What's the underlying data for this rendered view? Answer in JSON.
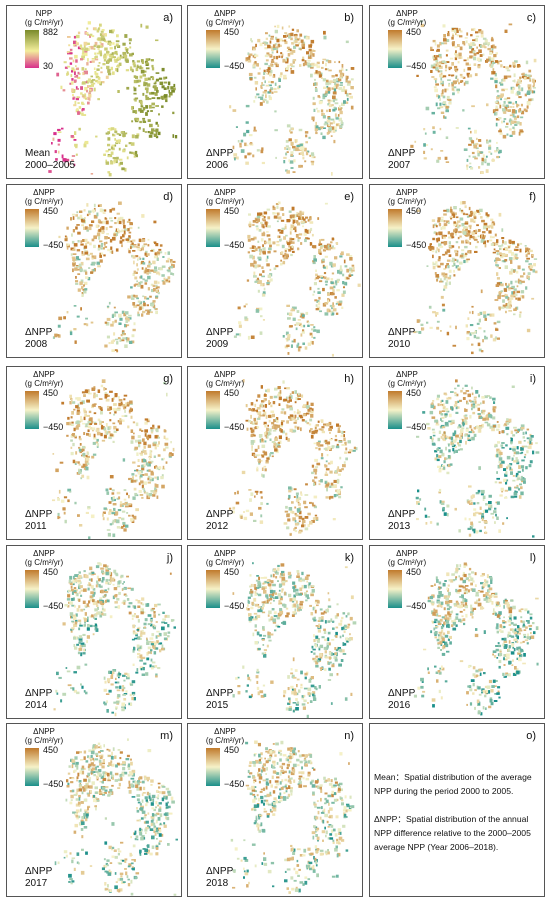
{
  "colors": {
    "npp_high": "#7a8a2a",
    "npp_mid": "#f3ee9c",
    "npp_low": "#d8308c",
    "delta_pos": "#c07a2c",
    "delta_mid": "#f6f2c8",
    "delta_neg": "#1a8f8a"
  },
  "panels": [
    {
      "letter": "a)",
      "legend_title": "NPP\n(g C/m²/yr)",
      "legend_max": "882",
      "legend_min": "30",
      "caption": "Mean\n2000–2005",
      "mode": "npp"
    },
    {
      "letter": "b)",
      "legend_title": "ΔNPP\n(g C/m²/yr)",
      "legend_max": "450",
      "legend_min": "−450",
      "caption": "ΔNPP\n2006",
      "mode": "delta"
    },
    {
      "letter": "c)",
      "legend_title": "ΔNPP\n(g C/m²/yr)",
      "legend_max": "450",
      "legend_min": "−450",
      "caption": "ΔNPP\n2007",
      "mode": "delta"
    },
    {
      "letter": "d)",
      "legend_title": "ΔNPP\n(g C/m²/yr)",
      "legend_max": "450",
      "legend_min": "−450",
      "caption": "ΔNPP\n2008",
      "mode": "delta"
    },
    {
      "letter": "e)",
      "legend_title": "ΔNPP\n(g C/m²/yr)",
      "legend_max": "450",
      "legend_min": "−450",
      "caption": "ΔNPP\n2009",
      "mode": "delta"
    },
    {
      "letter": "f)",
      "legend_title": "ΔNPP\n(g C/m²/yr)",
      "legend_max": "450",
      "legend_min": "−450",
      "caption": "ΔNPP\n2010",
      "mode": "delta"
    },
    {
      "letter": "g)",
      "legend_title": "ΔNPP\n(g C/m²/yr)",
      "legend_max": "450",
      "legend_min": "−450",
      "caption": "ΔNPP\n2011",
      "mode": "delta"
    },
    {
      "letter": "h)",
      "legend_title": "ΔNPP\n(g C/m²/yr)",
      "legend_max": "450",
      "legend_min": "−450",
      "caption": "ΔNPP\n2012",
      "mode": "delta"
    },
    {
      "letter": "i)",
      "legend_title": "ΔNPP\n(g C/m²/yr)",
      "legend_max": "450",
      "legend_min": "−450",
      "caption": "ΔNPP\n2013",
      "mode": "delta"
    },
    {
      "letter": "j)",
      "legend_title": "ΔNPP\n(g C/m²/yr)",
      "legend_max": "450",
      "legend_min": "−450",
      "caption": "ΔNPP\n2014",
      "mode": "delta"
    },
    {
      "letter": "k)",
      "legend_title": "ΔNPP\n(g C/m²/yr)",
      "legend_max": "450",
      "legend_min": "−450",
      "caption": "ΔNPP\n2015",
      "mode": "delta"
    },
    {
      "letter": "l)",
      "legend_title": "ΔNPP\n(g C/m²/yr)",
      "legend_max": "450",
      "legend_min": "−450",
      "caption": "ΔNPP\n2016",
      "mode": "delta"
    },
    {
      "letter": "m)",
      "legend_title": "ΔNPP\n(g C/m²/yr)",
      "legend_max": "450",
      "legend_min": "−450",
      "caption": "ΔNPP\n2017",
      "mode": "delta"
    },
    {
      "letter": "n)",
      "legend_title": "ΔNPP\n(g C/m²/yr)",
      "legend_max": "450",
      "legend_min": "−450",
      "caption": "ΔNPP\n2018",
      "mode": "delta"
    }
  ],
  "notes": {
    "letter": "o)",
    "mean_text": "Mean：Spatial distribution of the average NPP during the period 2000 to 2005.",
    "delta_text": "ΔNPP：Spatial distribution of the annual NPP difference relative to the 2000–2005 average NPP (Year 2006–2018)."
  }
}
